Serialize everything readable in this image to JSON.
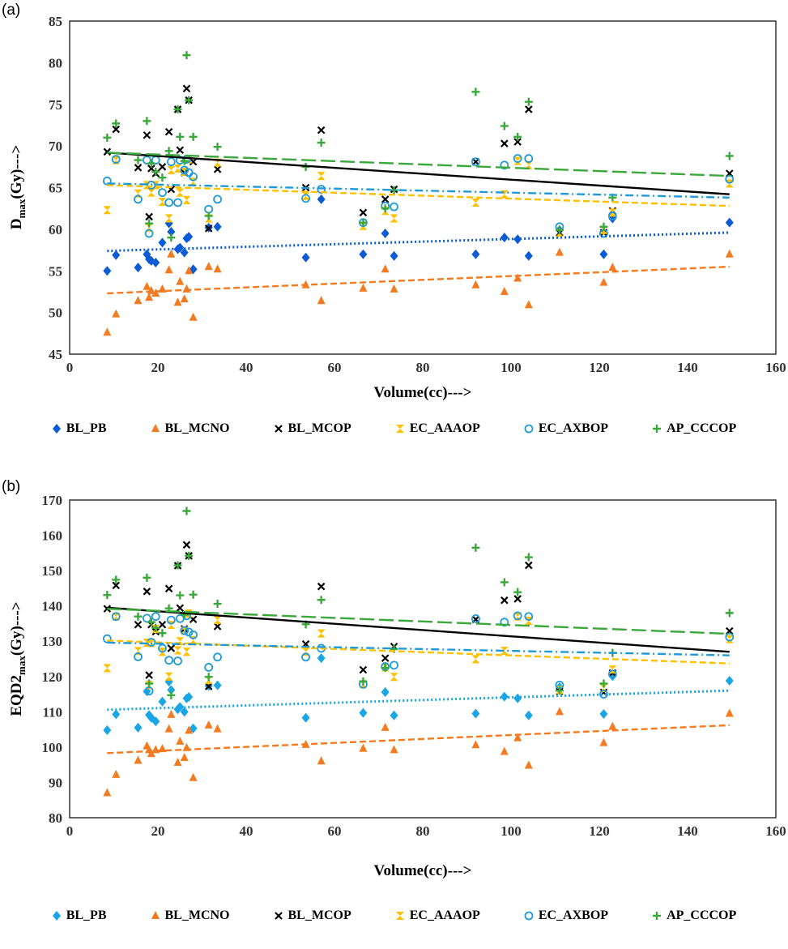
{
  "chart_data": [
    {
      "panel": "(a)",
      "type": "scatter",
      "xlabel": "Volume(cc)--->",
      "ylabel": {
        "main": "D",
        "sub": "max",
        "rest": "(Gy)--->"
      },
      "xlim": [
        0,
        160
      ],
      "ylim": [
        45,
        85
      ],
      "xticks": [
        0,
        20,
        40,
        60,
        80,
        100,
        120,
        140,
        160
      ],
      "yticks": [
        45,
        50,
        55,
        60,
        65,
        70,
        75,
        80,
        85
      ],
      "grid": false,
      "legend_position": "bottom",
      "x": [
        8.5,
        10.5,
        15.5,
        17.5,
        18,
        18.5,
        19.5,
        21,
        22.5,
        23,
        24.5,
        25,
        26,
        26.5,
        27,
        28,
        31.5,
        33.5,
        53.5,
        57,
        66.5,
        71.5,
        73.5,
        92,
        98.5,
        101.5,
        104,
        111,
        121,
        123,
        149.5
      ],
      "series": [
        {
          "name": "BL_PB",
          "marker": "diamond",
          "color": "#0b5bd6",
          "trend": "dotted",
          "trendline": [
            57.4,
            59.6
          ],
          "values": [
            55,
            56.9,
            55.4,
            57,
            56.4,
            56.2,
            56,
            58.4,
            60.7,
            59.7,
            57.6,
            57.8,
            57.2,
            58.9,
            59.1,
            55.2,
            60.2,
            60.3,
            56.6,
            63.6,
            57,
            59.5,
            56.8,
            57,
            59,
            58.8,
            56.8,
            59.9,
            57,
            61.3,
            60.8
          ]
        },
        {
          "name": "BL_MCNO",
          "marker": "triangle",
          "color": "#f47b20",
          "trend": "dashed",
          "trendline": [
            52.3,
            55.5
          ],
          "values": [
            47.6,
            49.8,
            51.4,
            53.1,
            51.8,
            52.6,
            52.3,
            52.8,
            55.1,
            57,
            51.2,
            53.7,
            51.6,
            52.8,
            55,
            49.4,
            55.5,
            55.2,
            53.3,
            51.4,
            52.9,
            55.2,
            52.8,
            53.3,
            52.5,
            54.1,
            50.9,
            57.2,
            53.6,
            55.4,
            57
          ]
        },
        {
          "name": "BL_MCOP",
          "marker": "x",
          "color": "#000000",
          "trend": "solid",
          "trendline": [
            69.2,
            64.2
          ],
          "values": [
            69.3,
            72,
            67.4,
            71.3,
            61.5,
            67.3,
            66.7,
            67.5,
            71.7,
            64.8,
            74.4,
            69.5,
            66.8,
            76.9,
            75.5,
            68.1,
            60.1,
            67.2,
            65,
            71.9,
            62,
            63.6,
            64.8,
            68.1,
            70.3,
            70.5,
            74.4,
            59.6,
            59.6,
            62.2,
            66.7
          ]
        },
        {
          "name": "EC_AAAOP",
          "marker": "hourglass",
          "color": "#ffc000",
          "trend": "dashed",
          "trendline": [
            65.3,
            62.8
          ],
          "values": [
            62.3,
            68.3,
            64.3,
            65.3,
            60.2,
            64.4,
            65.3,
            63.3,
            61.3,
            67.1,
            67.3,
            64.4,
            66.9,
            63.5,
            68.4,
            65.7,
            61.3,
            68,
            64,
            66.4,
            60.4,
            62.2,
            61.3,
            63.2,
            64.2,
            68.2,
            67.7,
            59.6,
            59.9,
            62,
            65.5
          ]
        },
        {
          "name": "EC_AXBOP",
          "marker": "circle",
          "color": "#1e9bd7",
          "trend": "dashdot",
          "trendline": [
            65.5,
            63.8
          ],
          "values": [
            65.8,
            68.4,
            63.6,
            68.3,
            59.5,
            65.3,
            68.3,
            64.4,
            63.2,
            68.1,
            63.2,
            68.3,
            67.1,
            68.4,
            66.8,
            66.3,
            62.4,
            63.6,
            63.7,
            64.8,
            60.8,
            62.8,
            62.7,
            68.1,
            67.7,
            68.5,
            68.5,
            60.3,
            59.5,
            61.6,
            66
          ]
        },
        {
          "name": "AP_CCCOP",
          "marker": "plus",
          "color": "#3aa83a",
          "trend": "longdash",
          "trendline": [
            69.2,
            66.4
          ],
          "values": [
            71,
            72.7,
            68.3,
            73,
            60.7,
            67.9,
            66.9,
            66.2,
            69.4,
            59,
            74.4,
            71.1,
            68.2,
            80.9,
            75.5,
            71.1,
            61.6,
            69.9,
            67.5,
            70.4,
            60.8,
            62.5,
            64.7,
            76.5,
            72.4,
            71.1,
            75.3,
            59.9,
            60.3,
            63.8,
            68.8
          ]
        }
      ]
    },
    {
      "panel": "(b)",
      "type": "scatter",
      "xlabel": "Volume(cc)--->",
      "ylabel": {
        "main": "EQD2",
        "sub": "max",
        "rest": "(Gy)--->"
      },
      "xlim": [
        0,
        160
      ],
      "ylim": [
        80,
        170
      ],
      "xticks": [
        0,
        20,
        40,
        60,
        80,
        100,
        120,
        140,
        160
      ],
      "yticks": [
        80,
        90,
        100,
        110,
        120,
        130,
        140,
        150,
        160,
        170
      ],
      "grid": false,
      "legend_position": "bottom",
      "x": [
        8.5,
        10.5,
        15.5,
        17.5,
        18,
        18.5,
        19.5,
        21,
        22.5,
        23,
        24.5,
        25,
        26,
        26.5,
        27,
        28,
        31.5,
        33.5,
        53.5,
        57,
        66.5,
        71.5,
        73.5,
        92,
        98.5,
        101.5,
        104,
        111,
        121,
        123,
        149.5
      ],
      "series": [
        {
          "name": "BL_PB",
          "marker": "diamond",
          "color": "#1aa6e6",
          "trend": "dotted",
          "trendline": [
            110.6,
            116
          ],
          "values": [
            104.8,
            109.3,
            105.5,
            115.8,
            109.1,
            108.3,
            107.3,
            112.9,
            118.5,
            116.2,
            110.7,
            111.4,
            110,
            113.8,
            114.2,
            105.3,
            117.3,
            117.5,
            108.3,
            125.2,
            109.7,
            115.6,
            109,
            109.5,
            114.3,
            113.8,
            109,
            117,
            109.4,
            120.1,
            118.8
          ]
        },
        {
          "name": "BL_MCNO",
          "marker": "triangle",
          "color": "#f47b20",
          "trend": "dashed",
          "trendline": [
            98.3,
            106.2
          ],
          "values": [
            87,
            92.2,
            96.2,
            100.3,
            99.2,
            98.1,
            99.2,
            99.5,
            105.1,
            109.2,
            95.6,
            101.6,
            97,
            99.8,
            104.7,
            91.3,
            106.2,
            105.1,
            100.7,
            96,
            99.6,
            105.5,
            99.2,
            100.6,
            98.7,
            102.6,
            94.8,
            110,
            101.2,
            105.8,
            109.5
          ]
        },
        {
          "name": "BL_MCOP",
          "marker": "x",
          "color": "#000000",
          "trend": "solid",
          "trendline": [
            139.5,
            127
          ],
          "values": [
            139.2,
            145.8,
            134.7,
            144.1,
            120.4,
            134.7,
            132.7,
            134.7,
            144.9,
            128,
            151.4,
            139.4,
            133.5,
            157.3,
            154.2,
            136.2,
            117.2,
            134.2,
            129.2,
            145.5,
            121.9,
            125.2,
            128.5,
            136.2,
            141.6,
            142,
            151.5,
            115.8,
            115.5,
            121,
            132.9
          ]
        },
        {
          "name": "EC_AAAOP",
          "marker": "hourglass",
          "color": "#ffc000",
          "trend": "dashed",
          "trendline": [
            130.2,
            123.7
          ],
          "values": [
            122.4,
            137,
            127.2,
            129.6,
            117.6,
            129.5,
            133.5,
            127,
            120,
            134.6,
            127.4,
            130,
            133,
            127,
            137.9,
            130.3,
            119,
            136,
            127,
            132.2,
            117.8,
            122.6,
            119.9,
            124.9,
            127.3,
            137,
            135.8,
            116.2,
            116.7,
            122,
            130.6
          ]
        },
        {
          "name": "EC_AXBOP",
          "marker": "circle",
          "color": "#1e9bd7",
          "trend": "dashdot",
          "trendline": [
            129.6,
            126
          ],
          "values": [
            130.7,
            137,
            125.6,
            136.5,
            115.9,
            129.7,
            137,
            128,
            124.6,
            136,
            124.4,
            136.4,
            133,
            137.2,
            132.6,
            131.8,
            122.6,
            125.5,
            125.5,
            128,
            117.8,
            122.8,
            123.2,
            136.4,
            135.4,
            137.2,
            137,
            117.6,
            115,
            120.7,
            131.2
          ]
        },
        {
          "name": "AP_CCCOP",
          "marker": "plus",
          "color": "#3aa83a",
          "trend": "longdash",
          "trendline": [
            139.2,
            132.1
          ],
          "values": [
            143.1,
            147.4,
            137,
            148,
            118,
            135.4,
            133.8,
            132.3,
            139.3,
            114.7,
            151.5,
            143,
            137.5,
            166.9,
            154.2,
            143.2,
            119.9,
            140.6,
            134.8,
            141.7,
            118.6,
            122.5,
            127.8,
            156.5,
            146.7,
            143.9,
            153.8,
            116,
            118,
            126.7,
            138
          ]
        }
      ]
    }
  ]
}
